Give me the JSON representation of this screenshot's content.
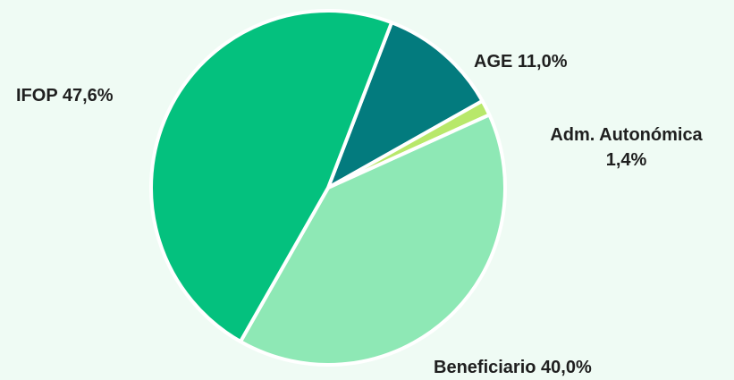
{
  "chart_data": {
    "type": "pie",
    "slices": [
      {
        "name": "AGE",
        "value": 11.0,
        "value_label": "11,0%",
        "color": "#037b7e"
      },
      {
        "name": "Adm. Autonómica",
        "value": 1.4,
        "value_label": "1,4%",
        "color": "#b8e86a"
      },
      {
        "name": "Beneficiario",
        "value": 40.0,
        "value_label": "40,0%",
        "color": "#8ee8b5"
      },
      {
        "name": "IFOP",
        "value": 47.6,
        "value_label": "47,6%",
        "color": "#04c17e"
      }
    ],
    "start": "top-right, clockwise",
    "separator_color": "#ffffff",
    "background": "#effbf4"
  }
}
